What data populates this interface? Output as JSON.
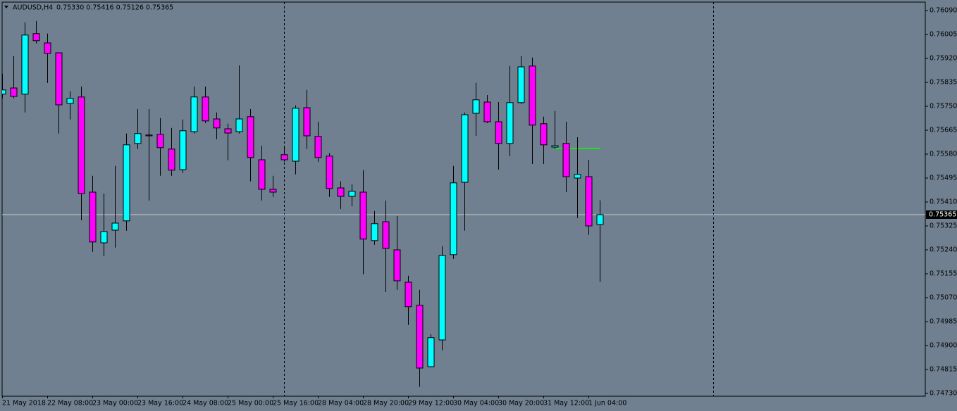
{
  "chart_data": {
    "type": "candlestick",
    "title": "AUDUSD,H4",
    "ohlc_text": "0.75330 0.75416 0.75126 0.75365",
    "up_color": "#00ffff",
    "down_color": "#ff00ff",
    "categories": [
      "21 May 2018",
      null,
      null,
      null,
      "22 May 08:00",
      null,
      null,
      null,
      "23 May 00:00",
      null,
      null,
      null,
      "23 May 16:00",
      null,
      null,
      null,
      "24 May 08:00",
      null,
      null,
      null,
      "25 May 00:00",
      null,
      null,
      null,
      "25 May 16:00",
      null,
      null,
      null,
      "28 May 04:00",
      null,
      null,
      null,
      "28 May 20:00",
      null,
      null,
      null,
      "29 May 12:00",
      null,
      null,
      null,
      "30 May 04:00",
      null,
      null,
      null,
      "30 May 20:00",
      null,
      null,
      null,
      "31 May 12:00",
      null,
      null,
      null,
      "1 Jun 04:00",
      null
    ],
    "open": [
      0.75793,
      0.75815,
      0.75793,
      0.76008,
      0.75975,
      0.7594,
      0.7576,
      0.75783,
      0.75445,
      0.75265,
      0.7531,
      0.75343,
      0.75618,
      0.75648,
      0.7565,
      0.75598,
      0.75525,
      0.7566,
      0.75783,
      0.75705,
      0.7567,
      0.7566,
      0.75713,
      0.7556,
      0.75455,
      0.75578,
      0.75555,
      0.75745,
      0.75643,
      0.75573,
      0.7546,
      0.7543,
      0.75445,
      0.75273,
      0.7534,
      0.7524,
      0.75125,
      0.75043,
      0.74825,
      0.7492,
      0.75223,
      0.7548,
      0.75725,
      0.75765,
      0.75695,
      0.75618,
      0.75763,
      0.75893,
      0.75688,
      0.75605,
      0.75618,
      0.75495,
      0.755,
      0.7533
    ],
    "high": [
      0.75865,
      0.75928,
      0.76048,
      0.76053,
      0.76008,
      0.7594,
      0.75803,
      0.7582,
      0.75503,
      0.7544,
      0.75538,
      0.75653,
      0.7574,
      0.7574,
      0.75708,
      0.75673,
      0.75703,
      0.7582,
      0.7582,
      0.75728,
      0.75688,
      0.75895,
      0.7574,
      0.7561,
      0.75503,
      0.75603,
      0.75753,
      0.75808,
      0.75695,
      0.75583,
      0.75483,
      0.75473,
      0.75523,
      0.75378,
      0.75415,
      0.7536,
      0.75148,
      0.75098,
      0.7494,
      0.75253,
      0.75538,
      0.75728,
      0.75833,
      0.7579,
      0.75765,
      0.75893,
      0.75928,
      0.75923,
      0.75713,
      0.75733,
      0.75695,
      0.7564,
      0.7556,
      0.75416
    ],
    "low": [
      0.75778,
      0.75778,
      0.75728,
      0.75973,
      0.75833,
      0.75653,
      0.75703,
      0.75345,
      0.75233,
      0.75218,
      0.75248,
      0.75308,
      0.75598,
      0.75415,
      0.75503,
      0.75503,
      0.75513,
      0.75653,
      0.7569,
      0.75633,
      0.75558,
      0.75653,
      0.75483,
      0.75415,
      0.75428,
      0.75553,
      0.75508,
      0.75598,
      0.75553,
      0.75428,
      0.75385,
      0.75395,
      0.75153,
      0.75258,
      0.7509,
      0.75098,
      0.74973,
      0.74753,
      0.74823,
      0.74883,
      0.75208,
      0.75308,
      0.75645,
      0.7569,
      0.75525,
      0.75573,
      0.75758,
      0.75545,
      0.75545,
      0.75598,
      0.75445,
      0.75353,
      0.75293,
      0.75126
    ],
    "close": [
      0.75808,
      0.75785,
      0.76003,
      0.75983,
      0.75938,
      0.75755,
      0.75778,
      0.7544,
      0.75268,
      0.75305,
      0.75335,
      0.75613,
      0.75653,
      0.75645,
      0.75603,
      0.75523,
      0.75663,
      0.75783,
      0.75698,
      0.75673,
      0.75655,
      0.75705,
      0.75568,
      0.75455,
      0.75445,
      0.7556,
      0.75743,
      0.75645,
      0.75568,
      0.75458,
      0.7543,
      0.75448,
      0.75278,
      0.75333,
      0.75245,
      0.7513,
      0.75038,
      0.7482,
      0.74928,
      0.7522,
      0.75478,
      0.7572,
      0.75773,
      0.75695,
      0.75618,
      0.75763,
      0.7589,
      0.75683,
      0.75613,
      0.7561,
      0.755,
      0.75508,
      0.75325,
      0.75365
    ],
    "ylim": [
      0.7472,
      0.7612
    ],
    "yticks": [
      {
        "value": 0.7609,
        "label": "0.76090"
      },
      {
        "value": 0.76005,
        "label": "0.76005"
      },
      {
        "value": 0.7592,
        "label": "0.75920"
      },
      {
        "value": 0.75835,
        "label": "0.75835"
      },
      {
        "value": 0.7575,
        "label": "0.75750"
      },
      {
        "value": 0.75665,
        "label": "0.75665"
      },
      {
        "value": 0.7558,
        "label": "0.75580"
      },
      {
        "value": 0.75495,
        "label": "0.75495"
      },
      {
        "value": 0.7541,
        "label": "0.75410"
      },
      {
        "value": 0.75325,
        "label": "0.75325"
      },
      {
        "value": 0.7524,
        "label": "0.75240"
      },
      {
        "value": 0.75155,
        "label": "0.75155"
      },
      {
        "value": 0.7507,
        "label": "0.75070"
      },
      {
        "value": 0.74985,
        "label": "0.74985"
      },
      {
        "value": 0.749,
        "label": "0.74900"
      },
      {
        "value": 0.74815,
        "label": "0.74815"
      },
      {
        "value": 0.7473,
        "label": "0.74730"
      }
    ],
    "current_price": 0.75365,
    "level_line": {
      "value": 0.756,
      "color": "#00ff00"
    }
  }
}
